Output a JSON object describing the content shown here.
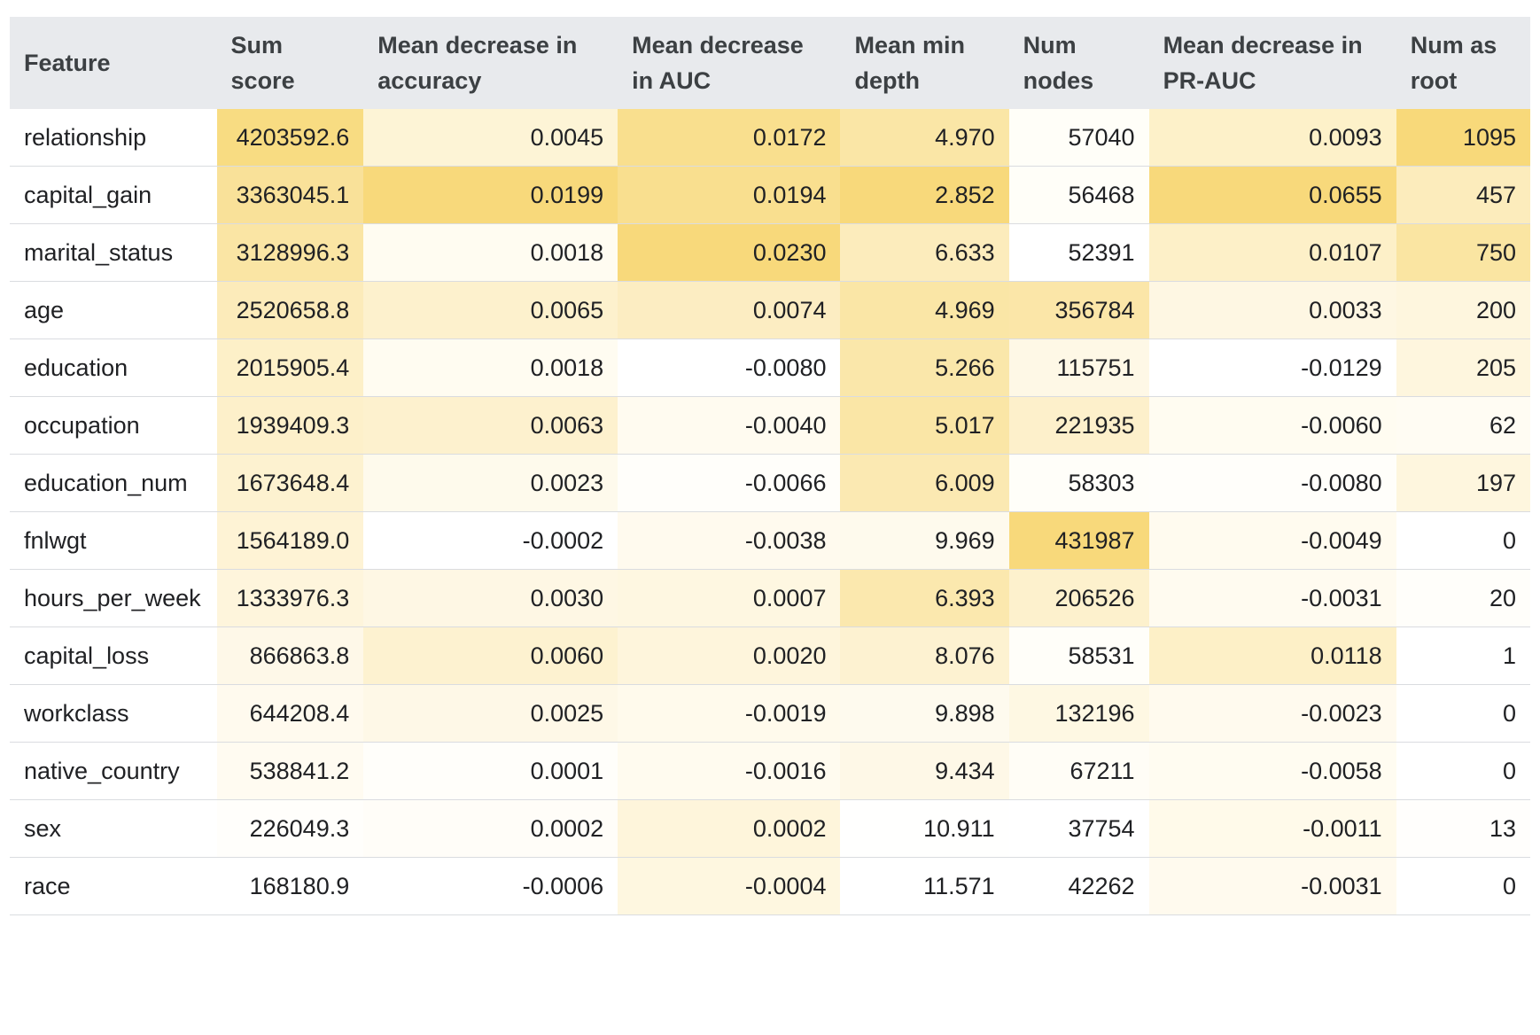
{
  "table": {
    "columns": [
      "Feature",
      "Sum score",
      "Mean decrease in accuracy",
      "Mean decrease in AUC",
      "Mean min depth",
      "Num nodes",
      "Mean decrease in PR-AUC",
      "Num as root"
    ],
    "rows": [
      {
        "cells": [
          "relationship",
          "4203592.6",
          "0.0045",
          "0.0172",
          "4.970",
          "57040",
          "0.0093",
          "1095"
        ],
        "colors": [
          "",
          "#f8dc82",
          "#fdf4d6",
          "#f9df8e",
          "#fae6a6",
          "#fffef8",
          "#fdf1c9",
          "#f8d97a"
        ]
      },
      {
        "cells": [
          "capital_gain",
          "3363045.1",
          "0.0199",
          "0.0194",
          "2.852",
          "56468",
          "0.0655",
          "457"
        ],
        "colors": [
          "",
          "#f9e199",
          "#f8d97b",
          "#f9df8f",
          "#f8d97b",
          "#fffef8",
          "#f8d97b",
          "#fcecbc"
        ]
      },
      {
        "cells": [
          "marital_status",
          "3128996.3",
          "0.0018",
          "0.0230",
          "6.633",
          "52391",
          "0.0107",
          "750"
        ],
        "colors": [
          "",
          "#fae5a4",
          "#fffcf1",
          "#f8d97b",
          "#fcecbc",
          "#ffffff",
          "#fdf0c8",
          "#fae5a2"
        ]
      },
      {
        "cells": [
          "age",
          "2520658.8",
          "0.0065",
          "0.0074",
          "4.969",
          "356784",
          "0.0033",
          "200"
        ],
        "colors": [
          "",
          "#fcebba",
          "#fdf1cd",
          "#fcedc2",
          "#fae6a6",
          "#fbe6a8",
          "#fef7e3",
          "#fef6de"
        ]
      },
      {
        "cells": [
          "education",
          "2015905.4",
          "0.0018",
          "-0.0080",
          "5.266",
          "115751",
          "-0.0129",
          "205"
        ],
        "colors": [
          "",
          "#fdf0c8",
          "#fffcf1",
          "#ffffff",
          "#fae7aa",
          "#fef8e6",
          "#ffffff",
          "#fef6de"
        ]
      },
      {
        "cells": [
          "occupation",
          "1939409.3",
          "0.0063",
          "-0.0040",
          "5.017",
          "221935",
          "-0.0060",
          "62"
        ],
        "colors": [
          "",
          "#fdf0ca",
          "#fdf1ce",
          "#fffbf0",
          "#fae6a6",
          "#fdf0cb",
          "#fffcf1",
          "#fffcf3"
        ]
      },
      {
        "cells": [
          "education_num",
          "1673648.4",
          "0.0023",
          "-0.0066",
          "6.009",
          "58303",
          "-0.0080",
          "197"
        ],
        "colors": [
          "",
          "#fdf2d0",
          "#fefaec",
          "#fffefa",
          "#fbe9b2",
          "#fffef9",
          "#fffefa",
          "#fef6de"
        ]
      },
      {
        "cells": [
          "fnlwgt",
          "1564189.0",
          "-0.0002",
          "-0.0038",
          "9.969",
          "431987",
          "-0.0049",
          "0"
        ],
        "colors": [
          "",
          "#fef3d5",
          "#ffffff",
          "#fffaee",
          "#fefaed",
          "#f8d97b",
          "#fffbef",
          "#ffffff"
        ]
      },
      {
        "cells": [
          "hours_per_week",
          "1333976.3",
          "0.0030",
          "0.0007",
          "6.393",
          "206526",
          "-0.0031",
          "20"
        ],
        "colors": [
          "",
          "#fef5dc",
          "#fef7e4",
          "#fef7e1",
          "#fbe8ae",
          "#fdf1cd",
          "#fffbf0",
          "#fffefa"
        ]
      },
      {
        "cells": [
          "capital_loss",
          "866863.8",
          "0.0060",
          "0.0020",
          "8.076",
          "58531",
          "0.0118",
          "1"
        ],
        "colors": [
          "",
          "#fef8e8",
          "#fdf2d0",
          "#fef5dc",
          "#fdf2d1",
          "#fffef9",
          "#fdf0c7",
          "#ffffff"
        ]
      },
      {
        "cells": [
          "workclass",
          "644208.4",
          "0.0025",
          "-0.0019",
          "9.898",
          "132196",
          "-0.0023",
          "0"
        ],
        "colors": [
          "",
          "#fffaee",
          "#fef8e7",
          "#fffaec",
          "#fefaee",
          "#fef8e3",
          "#fffaee",
          "#ffffff"
        ]
      },
      {
        "cells": [
          "native_country",
          "538841.2",
          "0.0001",
          "-0.0016",
          "9.434",
          "67211",
          "-0.0058",
          "0"
        ],
        "colors": [
          "",
          "#fffbf1",
          "#fffefa",
          "#fffbef",
          "#fef8e7",
          "#fffdf6",
          "#fffcf1",
          "#ffffff"
        ]
      },
      {
        "cells": [
          "sex",
          "226049.3",
          "0.0002",
          "0.0002",
          "10.911",
          "37754",
          "-0.0011",
          "13"
        ],
        "colors": [
          "",
          "#fffefb",
          "#fffdf8",
          "#fef5db",
          "#fffffe",
          "#ffffff",
          "#fffaea",
          "#fffefc"
        ]
      },
      {
        "cells": [
          "race",
          "168180.9",
          "-0.0006",
          "-0.0004",
          "11.571",
          "42262",
          "-0.0031",
          "0"
        ],
        "colors": [
          "",
          "#ffffff",
          "#ffffff",
          "#fef7e0",
          "#ffffff",
          "#ffffff",
          "#fffaee",
          "#ffffff"
        ]
      }
    ]
  }
}
